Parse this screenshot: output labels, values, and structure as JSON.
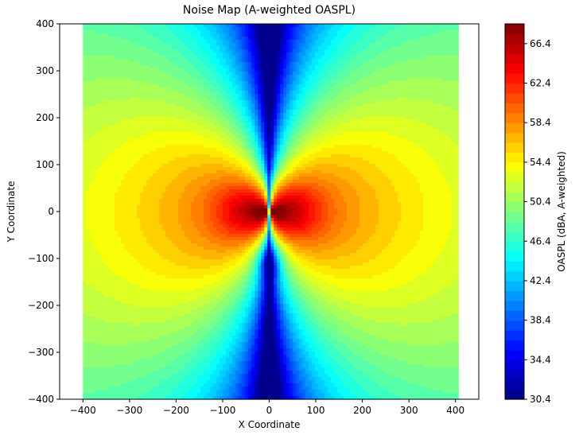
{
  "chart_data": {
    "type": "heatmap",
    "title": "Noise Map (A-weighted OASPL)",
    "xlabel": "X Coordinate",
    "ylabel": "Y Coordinate",
    "xlim": [
      -450,
      450
    ],
    "ylim": [
      -400,
      400
    ],
    "field_extent": {
      "x": [
        -400,
        400
      ],
      "y": [
        -400,
        400
      ]
    },
    "x_ticks": [
      "−400",
      "−300",
      "−200",
      "−100",
      "0",
      "100",
      "200",
      "300",
      "400"
    ],
    "y_ticks": [
      "−400",
      "−300",
      "−200",
      "−100",
      "0",
      "100",
      "200",
      "300",
      "400"
    ],
    "colorbar": {
      "label": "OASPL (dBA, A-weighted)",
      "range": [
        30.4,
        68.4
      ],
      "colormap": "jet",
      "ticks": [
        "30.4",
        "34.4",
        "38.4",
        "42.4",
        "46.4",
        "50.4",
        "54.4",
        "58.4",
        "62.4",
        "66.4"
      ]
    },
    "field": {
      "description_values": {
        "peak_level": 67.5,
        "peak_locations": [
          [
            -50,
            0
          ],
          [
            50,
            0
          ]
        ],
        "level_at_corners": 52,
        "level_along_x0_far": 30.4,
        "local_features_on_axis": [
          [
            0,
            50
          ],
          [
            0,
            -30
          ],
          [
            0,
            -110
          ]
        ]
      }
    },
    "grid": false,
    "legend": "colorbar-right"
  },
  "colors": {
    "jet_stops": [
      "#00007f",
      "#0000ff",
      "#007fff",
      "#00ffff",
      "#7fff7f",
      "#ffff00",
      "#ff7f00",
      "#ff0000",
      "#7f0000"
    ]
  }
}
